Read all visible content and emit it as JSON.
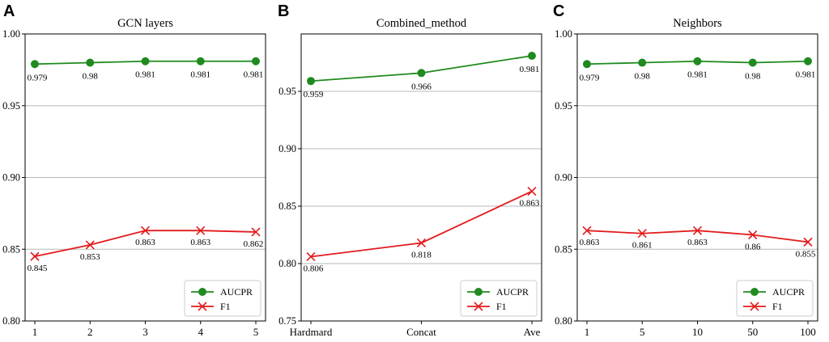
{
  "colors": {
    "aucpr": "#1f8a1f",
    "f1": "#e31a1c",
    "grid": "#b8b8b8",
    "axis": "#000000"
  },
  "chart_data": [
    {
      "type": "line",
      "panel": "A",
      "title": "GCN layers",
      "categories": [
        "1",
        "2",
        "3",
        "4",
        "5"
      ],
      "ylim": [
        0.8,
        1.0
      ],
      "yticks": [
        "0.80",
        "0.85",
        "0.90",
        "0.95",
        "1.00"
      ],
      "grid": "horizontal",
      "legend_position": "lower-right",
      "series": [
        {
          "name": "AUCPR",
          "marker": "circle",
          "values": [
            0.979,
            0.98,
            0.981,
            0.981,
            0.981
          ],
          "labels": [
            "0.979",
            "0.98",
            "0.981",
            "0.981",
            "0.981"
          ]
        },
        {
          "name": "F1",
          "marker": "x",
          "values": [
            0.845,
            0.853,
            0.863,
            0.863,
            0.862
          ],
          "labels": [
            "0.845",
            "0.853",
            "0.863",
            "0.863",
            "0.862"
          ]
        }
      ]
    },
    {
      "type": "line",
      "panel": "B",
      "title": "Combined_method",
      "categories": [
        "Hardmard",
        "Concat",
        "Ave"
      ],
      "ylim": [
        0.75,
        1.0
      ],
      "yticks": [
        "0.75",
        "0.80",
        "0.85",
        "0.90",
        "0.95"
      ],
      "grid": "horizontal",
      "legend_position": "lower-right",
      "series": [
        {
          "name": "AUCPR",
          "marker": "circle",
          "values": [
            0.959,
            0.966,
            0.981
          ],
          "labels": [
            "0.959",
            "0.966",
            "0.981"
          ]
        },
        {
          "name": "F1",
          "marker": "x",
          "values": [
            0.806,
            0.818,
            0.863
          ],
          "labels": [
            "0.806",
            "0.818",
            "0.863"
          ]
        }
      ]
    },
    {
      "type": "line",
      "panel": "C",
      "title": "Neighbors",
      "categories": [
        "1",
        "5",
        "10",
        "50",
        "100"
      ],
      "ylim": [
        0.8,
        1.0
      ],
      "yticks": [
        "0.80",
        "0.85",
        "0.90",
        "0.95",
        "1.00"
      ],
      "grid": "horizontal",
      "legend_position": "lower-right",
      "series": [
        {
          "name": "AUCPR",
          "marker": "circle",
          "values": [
            0.979,
            0.98,
            0.981,
            0.98,
            0.981
          ],
          "labels": [
            "0.979",
            "0.98",
            "0.981",
            "0.98",
            "0.981"
          ]
        },
        {
          "name": "F1",
          "marker": "x",
          "values": [
            0.863,
            0.861,
            0.863,
            0.86,
            0.855
          ],
          "labels": [
            "0.863",
            "0.861",
            "0.863",
            "0.86",
            "0.855"
          ]
        }
      ]
    }
  ]
}
